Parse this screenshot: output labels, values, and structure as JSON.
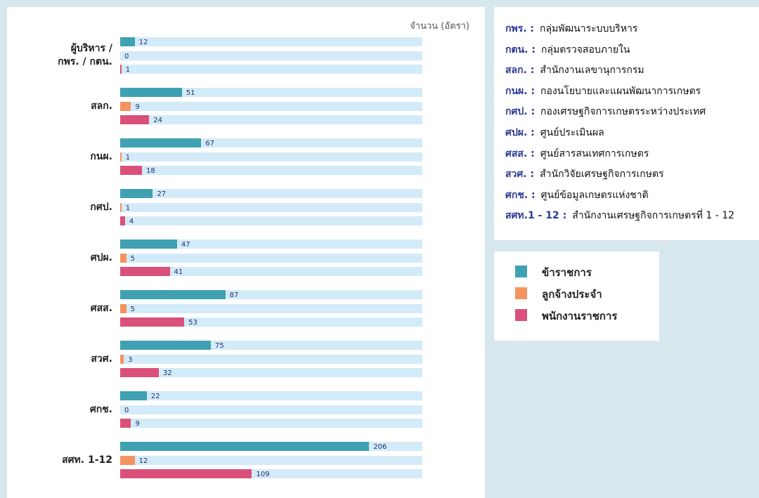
{
  "chart_data": {
    "type": "bar",
    "orientation": "horizontal",
    "axis_label": "จำนวน (อัตรา)",
    "categories": [
      "ผู้บริหาร /\nกพร. / กตน.",
      "สลก.",
      "กนผ.",
      "กศป.",
      "ศปผ.",
      "ศสส.",
      "สวศ.",
      "ศกช.",
      "สศท. 1-12"
    ],
    "xlim": [
      0,
      250
    ],
    "series": [
      {
        "name": "ข้าราชการ",
        "color": "#3fa1b1",
        "values": [
          12,
          51,
          67,
          27,
          47,
          87,
          75,
          22,
          206
        ]
      },
      {
        "name": "ลูกจ้างประจำ",
        "color": "#f5935f",
        "values": [
          0,
          9,
          1,
          1,
          5,
          5,
          3,
          0,
          12
        ]
      },
      {
        "name": "พนักงานราชการ",
        "color": "#d9507b",
        "values": [
          1,
          24,
          18,
          4,
          41,
          53,
          32,
          9,
          109
        ]
      }
    ]
  },
  "abbreviations": [
    {
      "abbr": "กพร. :",
      "text": "กลุ่มพัฒนาระบบบริหาร"
    },
    {
      "abbr": "กตน. :",
      "text": "กลุ่มตรวจสอบภายใน"
    },
    {
      "abbr": "สลก. :",
      "text": "สำนักงานเลขานุการกรม"
    },
    {
      "abbr": "กนผ. :",
      "text": "กองนโยบายและแผนพัฒนาการเกษตร"
    },
    {
      "abbr": "กศป. :",
      "text": "กองเศรษฐกิจการเกษตรระหว่างประเทศ"
    },
    {
      "abbr": "ศปผ. :",
      "text": "ศูนย์ประเมินผล"
    },
    {
      "abbr": "ศสส. :",
      "text": "ศูนย์สารสนเทศการเกษตร"
    },
    {
      "abbr": "สวศ. :",
      "text": "สำนักวิจัยเศรษฐกิจการเกษตร"
    },
    {
      "abbr": "ศกช. :",
      "text": "ศูนย์ข้อมูลเกษตรแห่งชาติ"
    },
    {
      "abbr": "สศท.1 - 12 :",
      "text": "สำนักงานเศรษฐกิจการเกษตรที่ 1 - 12"
    }
  ]
}
